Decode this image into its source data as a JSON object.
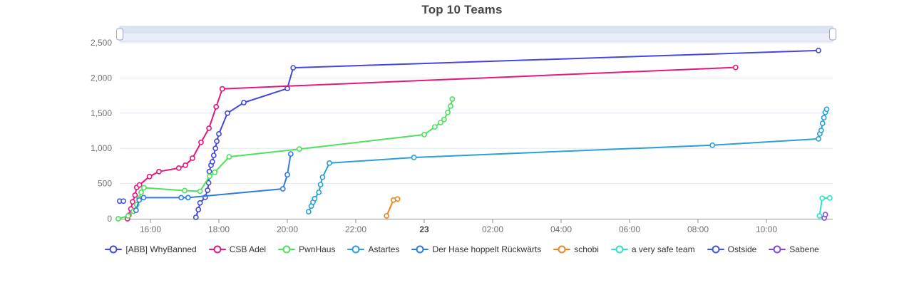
{
  "title": "Top 10 Teams",
  "datazoom": {
    "present": true,
    "position": "top"
  },
  "chart_data": {
    "type": "line",
    "title": "Top 10 Teams",
    "legend_position": "bottom",
    "grid": true,
    "x_axis": {
      "kind": "time",
      "t_unit": "hours since 15:00 (day 22)",
      "range_t": [
        0.05,
        20.95
      ],
      "ticks": [
        {
          "t": 1,
          "label": "16:00",
          "bold": false
        },
        {
          "t": 3,
          "label": "18:00",
          "bold": false
        },
        {
          "t": 5,
          "label": "20:00",
          "bold": false
        },
        {
          "t": 7,
          "label": "22:00",
          "bold": false
        },
        {
          "t": 9,
          "label": "23",
          "bold": true
        },
        {
          "t": 11,
          "label": "02:00",
          "bold": false
        },
        {
          "t": 13,
          "label": "04:00",
          "bold": false
        },
        {
          "t": 15,
          "label": "06:00",
          "bold": false
        },
        {
          "t": 17,
          "label": "08:00",
          "bold": false
        },
        {
          "t": 19,
          "label": "10:00",
          "bold": false
        }
      ]
    },
    "y_axis": {
      "min": 0,
      "max": 2500,
      "ticks": [
        {
          "v": 0,
          "label": "0"
        },
        {
          "v": 500,
          "label": "500"
        },
        {
          "v": 1000,
          "label": "1,000"
        },
        {
          "v": 1500,
          "label": "1,500"
        },
        {
          "v": 2000,
          "label": "2,000"
        },
        {
          "v": 2500,
          "label": "2,500"
        }
      ]
    },
    "series": [
      {
        "name": "[ABB] WhyBanned",
        "color": "#4347e0",
        "points": [
          [
            2.33,
            20
          ],
          [
            2.4,
            130
          ],
          [
            2.45,
            225
          ],
          [
            2.6,
            305
          ],
          [
            2.67,
            405
          ],
          [
            2.7,
            510
          ],
          [
            2.72,
            670
          ],
          [
            2.77,
            760
          ],
          [
            2.81,
            810
          ],
          [
            2.85,
            900
          ],
          [
            2.9,
            1000
          ],
          [
            2.94,
            1100
          ],
          [
            3.0,
            1205
          ],
          [
            3.25,
            1500
          ],
          [
            3.73,
            1650
          ],
          [
            5.0,
            1850
          ],
          [
            5.17,
            2145
          ],
          [
            20.52,
            2390
          ]
        ]
      },
      {
        "name": "CSB Adel",
        "color": "#e2187d",
        "points": [
          [
            0.33,
            0
          ],
          [
            0.37,
            50
          ],
          [
            0.43,
            140
          ],
          [
            0.48,
            240
          ],
          [
            0.55,
            335
          ],
          [
            0.6,
            445
          ],
          [
            0.68,
            480
          ],
          [
            0.97,
            600
          ],
          [
            1.25,
            670
          ],
          [
            1.83,
            720
          ],
          [
            2.02,
            760
          ],
          [
            2.23,
            860
          ],
          [
            2.48,
            1085
          ],
          [
            2.71,
            1285
          ],
          [
            2.92,
            1590
          ],
          [
            3.1,
            1845
          ],
          [
            18.1,
            2150
          ]
        ]
      },
      {
        "name": "PwnHaus",
        "color": "#4ee05e",
        "points": [
          [
            0.06,
            0
          ],
          [
            0.35,
            40
          ],
          [
            0.5,
            105
          ],
          [
            0.6,
            200
          ],
          [
            0.67,
            290
          ],
          [
            0.73,
            375
          ],
          [
            0.81,
            440
          ],
          [
            2.0,
            400
          ],
          [
            2.45,
            390
          ],
          [
            2.73,
            605
          ],
          [
            2.88,
            660
          ],
          [
            3.3,
            880
          ],
          [
            5.35,
            990
          ],
          [
            9.0,
            1195
          ],
          [
            9.31,
            1305
          ],
          [
            9.48,
            1365
          ],
          [
            9.58,
            1410
          ],
          [
            9.69,
            1510
          ],
          [
            9.77,
            1600
          ],
          [
            9.82,
            1700
          ]
        ]
      },
      {
        "name": "Astartes",
        "color": "#2a9fd8",
        "points": [
          [
            5.62,
            100
          ],
          [
            5.7,
            180
          ],
          [
            5.75,
            235
          ],
          [
            5.8,
            285
          ],
          [
            5.92,
            375
          ],
          [
            5.97,
            485
          ],
          [
            6.03,
            590
          ],
          [
            6.23,
            790
          ],
          [
            8.7,
            870
          ],
          [
            17.42,
            1045
          ],
          [
            20.52,
            1135
          ],
          [
            20.56,
            1205
          ],
          [
            20.6,
            1255
          ],
          [
            20.64,
            1355
          ],
          [
            20.68,
            1435
          ],
          [
            20.72,
            1510
          ],
          [
            20.76,
            1555
          ]
        ]
      },
      {
        "name": "Der Hase hoppelt Rückwärts",
        "color": "#2c7ce0",
        "points": [
          [
            0.58,
            120
          ],
          [
            0.67,
            265
          ],
          [
            0.8,
            300
          ],
          [
            1.9,
            300
          ],
          [
            2.1,
            300
          ],
          [
            4.87,
            425
          ],
          [
            5.0,
            625
          ],
          [
            5.1,
            920
          ]
        ]
      },
      {
        "name": "schobi",
        "color": "#e8861f",
        "points": [
          [
            7.9,
            40
          ],
          [
            8.1,
            265
          ],
          [
            8.22,
            280
          ]
        ]
      },
      {
        "name": "a very safe team",
        "color": "#2de3c4",
        "points": [
          [
            20.55,
            40
          ],
          [
            20.63,
            290
          ],
          [
            20.85,
            295
          ]
        ]
      },
      {
        "name": "Ostside",
        "color": "#3e56e0",
        "points": [
          [
            0.1,
            250
          ],
          [
            0.21,
            250
          ]
        ]
      },
      {
        "name": "Sabene",
        "color": "#8149e0",
        "points": [
          [
            20.69,
            10
          ],
          [
            20.72,
            60
          ]
        ]
      }
    ]
  }
}
